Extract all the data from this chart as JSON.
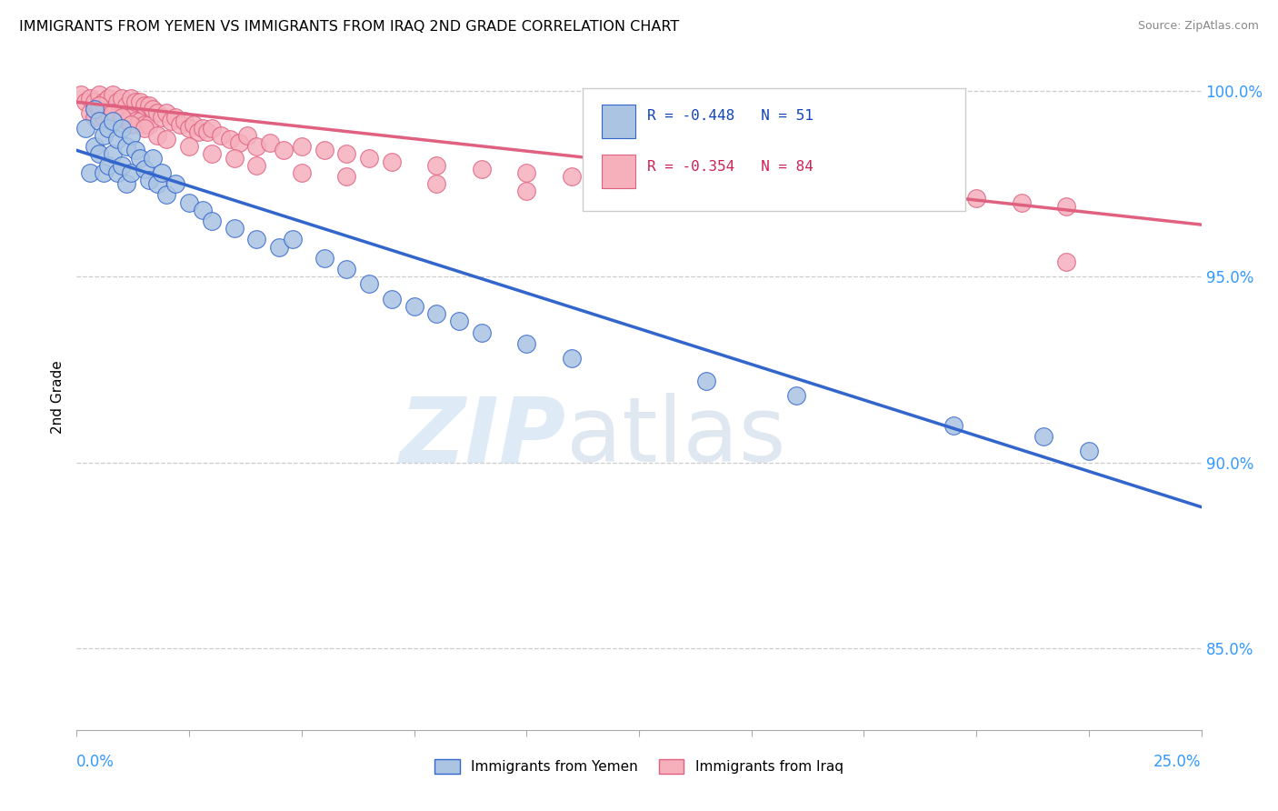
{
  "title": "IMMIGRANTS FROM YEMEN VS IMMIGRANTS FROM IRAQ 2ND GRADE CORRELATION CHART",
  "source": "Source: ZipAtlas.com",
  "ylabel": "2nd Grade",
  "ylabel_right_ticks": [
    85.0,
    90.0,
    95.0,
    100.0
  ],
  "xlim": [
    0.0,
    0.25
  ],
  "ylim": [
    0.828,
    1.007
  ],
  "color_yemen": "#aac4e2",
  "color_iraq": "#f5b0bc",
  "line_color_yemen": "#3366cc",
  "line_color_iraq": "#e06080",
  "watermark_zip": "ZIP",
  "watermark_atlas": "atlas",
  "legend_items": [
    {
      "label": "R = -0.448",
      "n_label": "N = 51",
      "color": "#aac4e2",
      "line_color": "#3366cc"
    },
    {
      "label": "R = -0.354",
      "n_label": "N = 84",
      "color": "#f5b0bc",
      "line_color": "#e06080"
    }
  ],
  "bottom_legend": [
    "Immigrants from Yemen",
    "Immigrants from Iraq"
  ],
  "yemen_x": [
    0.002,
    0.003,
    0.004,
    0.004,
    0.005,
    0.005,
    0.006,
    0.006,
    0.007,
    0.007,
    0.008,
    0.008,
    0.009,
    0.009,
    0.01,
    0.01,
    0.011,
    0.011,
    0.012,
    0.012,
    0.013,
    0.014,
    0.015,
    0.016,
    0.017,
    0.018,
    0.019,
    0.02,
    0.022,
    0.025,
    0.028,
    0.03,
    0.035,
    0.04,
    0.045,
    0.048,
    0.055,
    0.06,
    0.065,
    0.07,
    0.075,
    0.08,
    0.085,
    0.09,
    0.1,
    0.11,
    0.14,
    0.16,
    0.195,
    0.215,
    0.225
  ],
  "yemen_y": [
    0.99,
    0.978,
    0.995,
    0.985,
    0.992,
    0.983,
    0.988,
    0.978,
    0.99,
    0.98,
    0.992,
    0.983,
    0.987,
    0.978,
    0.99,
    0.98,
    0.985,
    0.975,
    0.988,
    0.978,
    0.984,
    0.982,
    0.979,
    0.976,
    0.982,
    0.975,
    0.978,
    0.972,
    0.975,
    0.97,
    0.968,
    0.965,
    0.963,
    0.96,
    0.958,
    0.96,
    0.955,
    0.952,
    0.948,
    0.944,
    0.942,
    0.94,
    0.938,
    0.935,
    0.932,
    0.928,
    0.922,
    0.918,
    0.91,
    0.907,
    0.903
  ],
  "iraq_x": [
    0.001,
    0.002,
    0.003,
    0.003,
    0.004,
    0.004,
    0.005,
    0.005,
    0.006,
    0.006,
    0.007,
    0.007,
    0.008,
    0.008,
    0.009,
    0.009,
    0.01,
    0.01,
    0.011,
    0.011,
    0.012,
    0.012,
    0.013,
    0.013,
    0.014,
    0.014,
    0.015,
    0.015,
    0.016,
    0.016,
    0.017,
    0.018,
    0.019,
    0.02,
    0.021,
    0.022,
    0.023,
    0.024,
    0.025,
    0.026,
    0.027,
    0.028,
    0.029,
    0.03,
    0.032,
    0.034,
    0.036,
    0.038,
    0.04,
    0.043,
    0.046,
    0.05,
    0.055,
    0.06,
    0.065,
    0.07,
    0.08,
    0.09,
    0.1,
    0.11,
    0.12,
    0.13,
    0.15,
    0.17,
    0.185,
    0.2,
    0.21,
    0.22,
    0.005,
    0.008,
    0.01,
    0.012,
    0.015,
    0.018,
    0.02,
    0.025,
    0.03,
    0.035,
    0.04,
    0.05,
    0.06,
    0.08,
    0.1,
    0.22
  ],
  "iraq_y": [
    0.999,
    0.997,
    0.998,
    0.994,
    0.997,
    0.993,
    0.999,
    0.995,
    0.997,
    0.993,
    0.998,
    0.994,
    0.999,
    0.995,
    0.997,
    0.993,
    0.998,
    0.993,
    0.996,
    0.992,
    0.998,
    0.993,
    0.997,
    0.992,
    0.997,
    0.992,
    0.996,
    0.991,
    0.996,
    0.991,
    0.995,
    0.994,
    0.993,
    0.994,
    0.992,
    0.993,
    0.991,
    0.992,
    0.99,
    0.991,
    0.989,
    0.99,
    0.989,
    0.99,
    0.988,
    0.987,
    0.986,
    0.988,
    0.985,
    0.986,
    0.984,
    0.985,
    0.984,
    0.983,
    0.982,
    0.981,
    0.98,
    0.979,
    0.978,
    0.977,
    0.976,
    0.975,
    0.974,
    0.973,
    0.972,
    0.971,
    0.97,
    0.969,
    0.996,
    0.994,
    0.993,
    0.991,
    0.99,
    0.988,
    0.987,
    0.985,
    0.983,
    0.982,
    0.98,
    0.978,
    0.977,
    0.975,
    0.973,
    0.954
  ]
}
